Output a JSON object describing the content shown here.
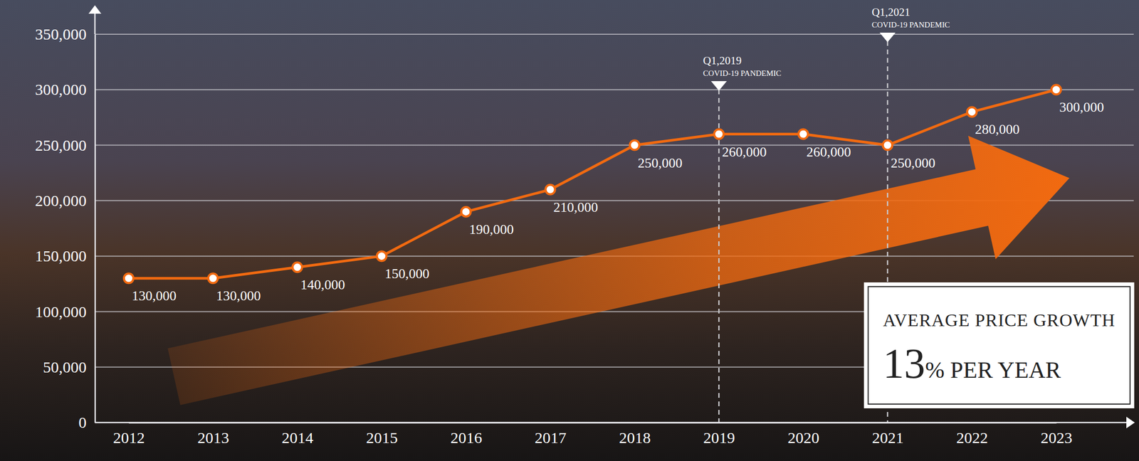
{
  "chart_data": {
    "type": "line",
    "categories": [
      "2012",
      "2013",
      "2014",
      "2015",
      "2016",
      "2017",
      "2018",
      "2019",
      "2020",
      "2021",
      "2022",
      "2023"
    ],
    "values": [
      130000,
      130000,
      140000,
      150000,
      190000,
      210000,
      250000,
      260000,
      260000,
      250000,
      280000,
      300000
    ],
    "value_labels": [
      "130,000",
      "130,000",
      "140,000",
      "150,000",
      "190,000",
      "210,000",
      "250,000",
      "260,000",
      "260,000",
      "250,000",
      "280,000",
      "300,000"
    ],
    "color": "#f26a10",
    "marker": "circle",
    "data_labels": true,
    "grid": true,
    "ylim": [
      0,
      350000
    ],
    "yticks": [
      0,
      {
        "value": 50000,
        "label": "50,000"
      },
      {
        "value": 100000,
        "label": "100,000"
      },
      {
        "value": 150000,
        "label": "150,000"
      },
      {
        "value": 200000,
        "label": "200,000"
      },
      {
        "value": 250000,
        "label": "250,000"
      },
      {
        "value": 300000,
        "label": "300,000"
      },
      {
        "value": 350000,
        "label": "350,000"
      }
    ],
    "annotations": [
      {
        "x": "2019",
        "label": "Q1,2019",
        "text": "COVID-19 PANDEMIC"
      },
      {
        "x": "2021",
        "label": "Q1,2021",
        "text": "COVID-19 PANDEMIC"
      }
    ],
    "callout": {
      "title": "AVERAGE PRICE GROWTH",
      "text": "13% PER YEAR"
    }
  }
}
